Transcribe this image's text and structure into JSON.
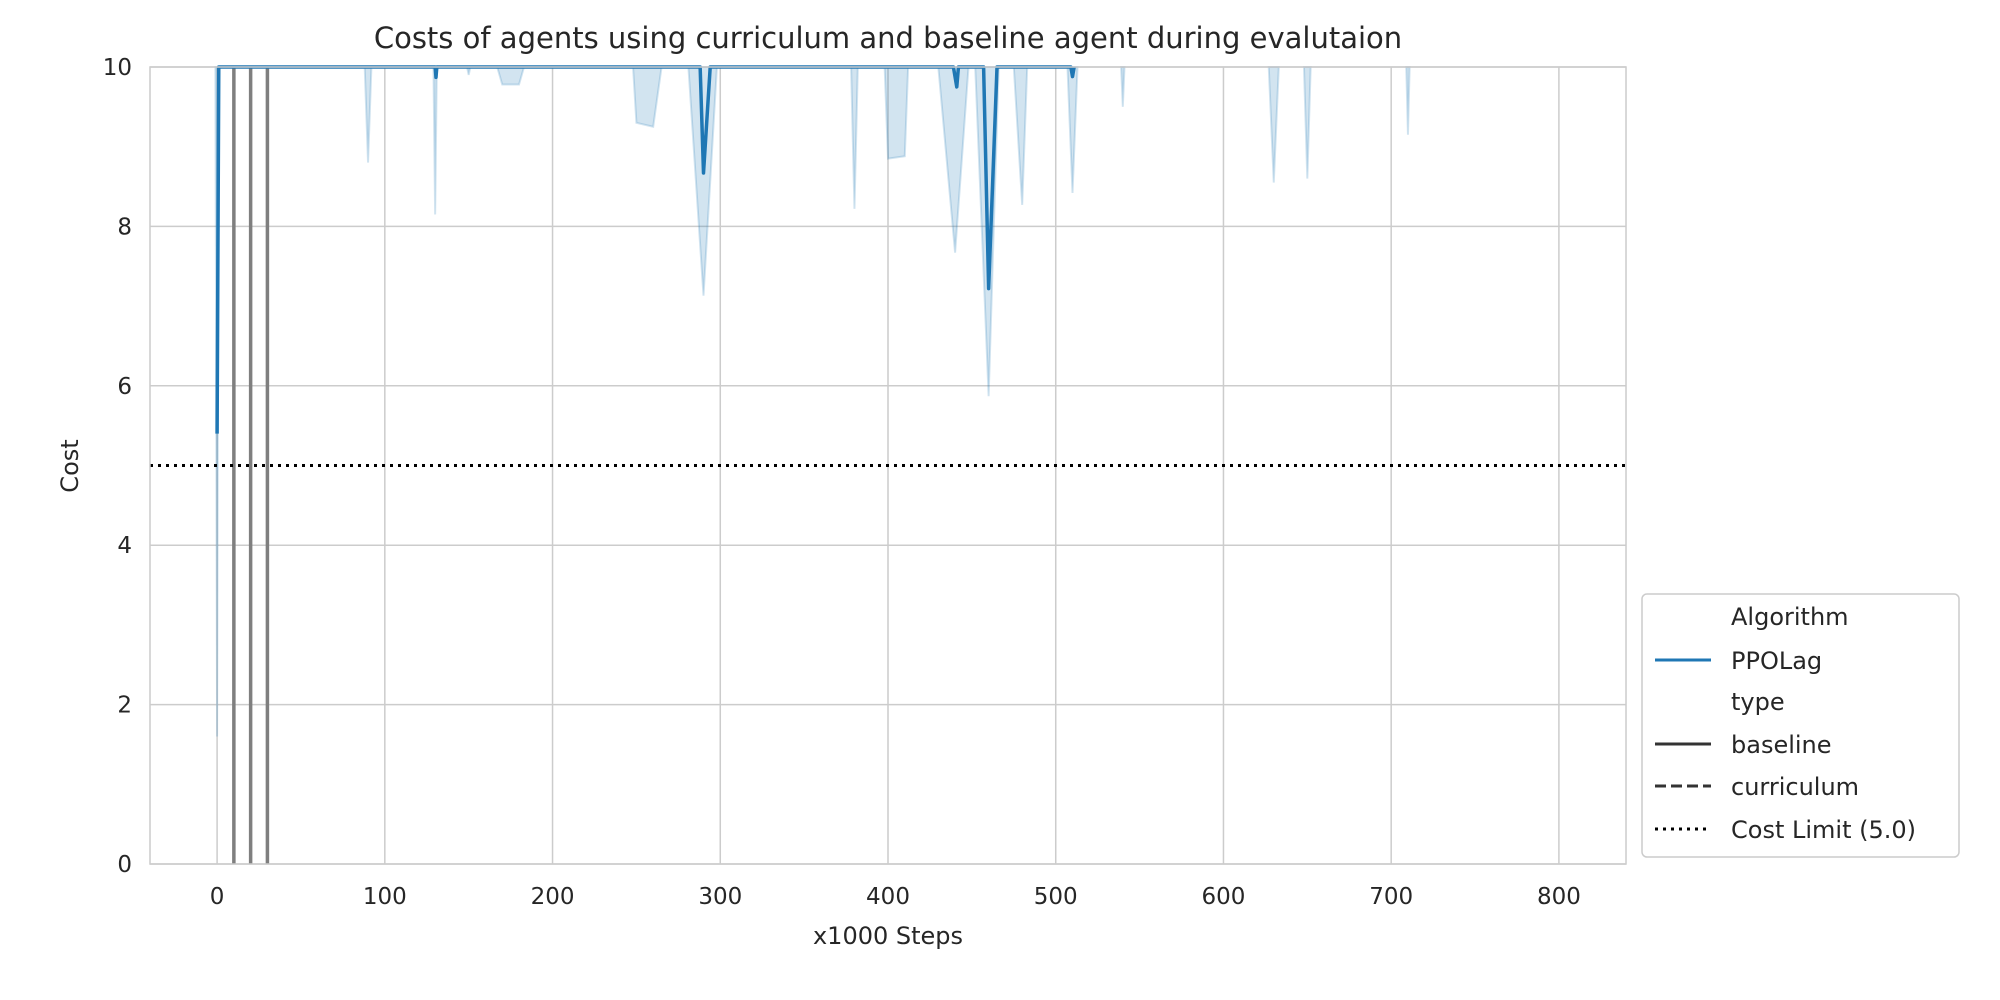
{
  "chart_data": {
    "type": "line",
    "title": "Costs of agents using curriculum and baseline agent during evalutaion",
    "xlabel": "x1000 Steps",
    "ylabel": "Cost",
    "xlim": [
      -40,
      840
    ],
    "ylim": [
      0,
      10
    ],
    "xticks": [
      0,
      100,
      200,
      300,
      400,
      500,
      600,
      700,
      800
    ],
    "yticks": [
      0,
      2,
      4,
      6,
      8,
      10
    ],
    "grid": true,
    "legend_position": "lower-right outside",
    "legend": {
      "groups": [
        {
          "title": "Algorithm",
          "entries": [
            {
              "label": "PPOLag",
              "style": "solid",
              "color": "#1f77b4"
            }
          ]
        },
        {
          "title": "type",
          "entries": [
            {
              "label": "baseline",
              "style": "solid",
              "color": "#333333"
            },
            {
              "label": "curriculum",
              "style": "dashed",
              "color": "#333333"
            }
          ]
        }
      ],
      "extra": [
        {
          "label": "Cost Limit (5.0)",
          "style": "dotted",
          "color": "#000000"
        }
      ]
    },
    "cost_limit": 5.0,
    "series": [
      {
        "name": "PPOLag",
        "color": "#1f77b4",
        "mean": [
          [
            0,
            5.4
          ],
          [
            1,
            10
          ],
          [
            130,
            10
          ],
          [
            130.5,
            9.87
          ],
          [
            131,
            10
          ],
          [
            288,
            10
          ],
          [
            290,
            8.67
          ],
          [
            294,
            10
          ],
          [
            439,
            10
          ],
          [
            441,
            9.75
          ],
          [
            442,
            10
          ],
          [
            457,
            10
          ],
          [
            460,
            7.22
          ],
          [
            465,
            10
          ],
          [
            509,
            10
          ],
          [
            510,
            9.88
          ],
          [
            511,
            10
          ]
        ],
        "band": [
          {
            "x": [
              -1,
              0,
              1
            ],
            "lower": [
              10,
              1.6,
              10
            ]
          },
          {
            "x": [
              88,
              90,
              92
            ],
            "lower": [
              10,
              8.8,
              10
            ]
          },
          {
            "x": [
              129,
              130,
              131
            ],
            "lower": [
              10,
              8.15,
              10
            ]
          },
          {
            "x": [
              149,
              150,
              151
            ],
            "lower": [
              10,
              9.9,
              10
            ]
          },
          {
            "x": [
              167,
              170,
              180,
              183
            ],
            "lower": [
              10,
              9.78,
              9.78,
              10
            ]
          },
          {
            "x": [
              248,
              250,
              260,
              265
            ],
            "lower": [
              10,
              9.3,
              9.25,
              10
            ]
          },
          {
            "x": [
              281,
              290,
              298
            ],
            "lower": [
              10,
              7.13,
              10
            ]
          },
          {
            "x": [
              378,
              380,
              382
            ],
            "lower": [
              10,
              8.22,
              10
            ]
          },
          {
            "x": [
              398,
              400,
              410,
              412
            ],
            "lower": [
              10,
              8.85,
              8.88,
              10
            ]
          },
          {
            "x": [
              430,
              440,
              448
            ],
            "lower": [
              10,
              7.67,
              10
            ]
          },
          {
            "x": [
              452,
              460,
              466
            ],
            "lower": [
              10,
              5.87,
              10
            ]
          },
          {
            "x": [
              475,
              480,
              483
            ],
            "lower": [
              10,
              8.27,
              10
            ]
          },
          {
            "x": [
              507,
              510,
              513
            ],
            "lower": [
              10,
              8.42,
              10
            ]
          },
          {
            "x": [
              539,
              540,
              541
            ],
            "lower": [
              10,
              9.5,
              10
            ]
          },
          {
            "x": [
              627,
              630,
              633
            ],
            "lower": [
              10,
              8.55,
              10
            ]
          },
          {
            "x": [
              648,
              650,
              652
            ],
            "lower": [
              10,
              8.6,
              10
            ]
          },
          {
            "x": [
              709,
              710,
              711
            ],
            "lower": [
              10,
              9.15,
              10
            ]
          }
        ]
      },
      {
        "name": "baseline",
        "color": "#7f7f7f",
        "verticals": [
          10,
          20,
          30
        ]
      }
    ]
  }
}
